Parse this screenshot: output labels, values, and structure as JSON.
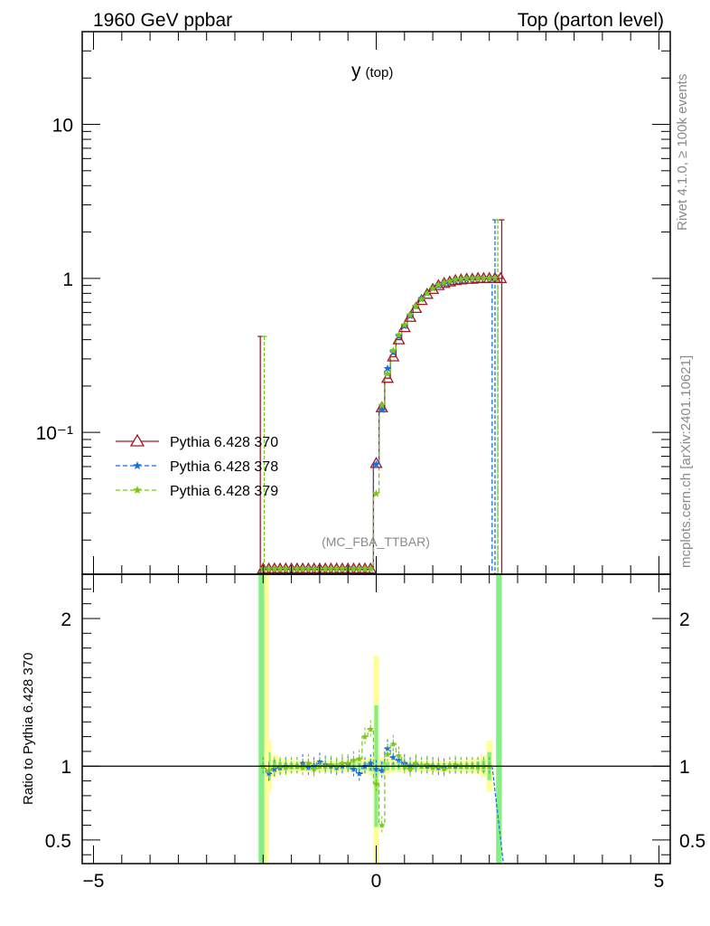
{
  "header": {
    "left": "1960 GeV ppbar",
    "right": "Top (parton level)"
  },
  "side_text": {
    "rivet": "Rivet 4.1.0, ≥ 100k events",
    "mcplots": "mcplots.cern.ch [arXiv:2401.10621]"
  },
  "plot_title": {
    "main": "y",
    "sub": "(top)"
  },
  "analysis_label": "(MC_FBA_TTBAR)",
  "ratio_ylabel": "Ratio to Pythia 6.428 370",
  "colors": {
    "s370": "#9a1c2a",
    "s378": "#1a6fe0",
    "s379": "#7cc51a",
    "band_green": "#86ee86",
    "band_yellow": "#ffff99"
  },
  "chart_data": [
    {
      "type": "line",
      "title": "y (top)",
      "xlim": [
        -5.2,
        5.2
      ],
      "ylim": [
        0.012,
        40
      ],
      "yscale": "log",
      "yticks": [
        0.1,
        1,
        10
      ],
      "ytick_labels": [
        "10⁻¹",
        "1",
        "10"
      ],
      "legend_position": "middle-left",
      "x": [
        -2.0,
        -1.9,
        -1.8,
        -1.7,
        -1.6,
        -1.5,
        -1.4,
        -1.3,
        -1.2,
        -1.1,
        -1.0,
        -0.9,
        -0.8,
        -0.7,
        -0.6,
        -0.5,
        -0.4,
        -0.3,
        -0.2,
        -0.1,
        0.0,
        0.1,
        0.2,
        0.3,
        0.4,
        0.5,
        0.6,
        0.7,
        0.8,
        0.9,
        1.0,
        1.1,
        1.2,
        1.3,
        1.4,
        1.5,
        1.6,
        1.7,
        1.8,
        1.9,
        2.0,
        2.1,
        2.2
      ],
      "series": [
        {
          "name": "Pythia 6.428 370",
          "marker": "triangle-open",
          "style": "solid",
          "values": [
            0.013,
            0.013,
            0.013,
            0.013,
            0.013,
            0.013,
            0.013,
            0.013,
            0.013,
            0.013,
            0.013,
            0.013,
            0.013,
            0.013,
            0.013,
            0.013,
            0.013,
            0.013,
            0.013,
            0.013,
            0.063,
            0.145,
            0.225,
            0.31,
            0.4,
            0.48,
            0.56,
            0.64,
            0.72,
            0.79,
            0.85,
            0.9,
            0.93,
            0.95,
            0.97,
            0.98,
            0.99,
            0.99,
            1.0,
            1.0,
            1.0,
            1.0,
            1.0
          ]
        },
        {
          "name": "Pythia 6.428 378",
          "marker": "star",
          "style": "dashed",
          "values": [
            0.013,
            0.013,
            0.013,
            0.013,
            0.013,
            0.013,
            0.013,
            0.013,
            0.013,
            0.013,
            0.013,
            0.013,
            0.013,
            0.013,
            0.013,
            0.013,
            0.013,
            0.013,
            0.013,
            0.013,
            0.062,
            0.14,
            0.26,
            0.33,
            0.42,
            0.49,
            0.57,
            0.66,
            0.74,
            0.8,
            0.86,
            0.9,
            0.93,
            0.95,
            0.97,
            0.98,
            0.99,
            1.0,
            1.0,
            1.0,
            1.0,
            0.01,
            0.01
          ]
        },
        {
          "name": "Pythia 6.428 379",
          "marker": "star",
          "style": "dashed",
          "values": [
            0.013,
            0.013,
            0.013,
            0.013,
            0.013,
            0.013,
            0.013,
            0.013,
            0.013,
            0.013,
            0.013,
            0.013,
            0.013,
            0.013,
            0.013,
            0.013,
            0.013,
            0.013,
            0.013,
            0.013,
            0.04,
            0.15,
            0.24,
            0.34,
            0.43,
            0.5,
            0.58,
            0.66,
            0.73,
            0.8,
            0.86,
            0.91,
            0.94,
            0.96,
            0.98,
            0.99,
            1.0,
            1.0,
            1.0,
            1.0,
            1.0,
            1.0,
            0.01
          ]
        }
      ]
    },
    {
      "type": "line",
      "ylabel": "Ratio to Pythia 6.428 370",
      "xlim": [
        -5.2,
        5.2
      ],
      "ylim": [
        0.34,
        2.3
      ],
      "yticks": [
        0.5,
        1,
        2
      ],
      "ytick_labels": [
        "0.5",
        "1",
        "2"
      ],
      "xticks": [
        -5,
        0,
        5
      ],
      "xtick_labels": [
        "−5",
        "0",
        "5"
      ],
      "reference_line": 1,
      "x": [
        -2.0,
        -1.9,
        -1.8,
        -1.7,
        -1.6,
        -1.5,
        -1.4,
        -1.3,
        -1.2,
        -1.1,
        -1.0,
        -0.9,
        -0.8,
        -0.7,
        -0.6,
        -0.5,
        -0.4,
        -0.3,
        -0.2,
        -0.1,
        0.0,
        0.1,
        0.2,
        0.3,
        0.4,
        0.5,
        0.6,
        0.7,
        0.8,
        0.9,
        1.0,
        1.1,
        1.2,
        1.3,
        1.4,
        1.5,
        1.6,
        1.7,
        1.8,
        1.9,
        2.0
      ],
      "series": [
        {
          "name": "Pythia 6.428 378",
          "values": [
            1.0,
            0.95,
            0.98,
            0.99,
            1.0,
            1.0,
            1.0,
            1.02,
            0.99,
            1.0,
            1.03,
            1.01,
            1.0,
            0.99,
            1.0,
            1.01,
            0.98,
            0.95,
            1.0,
            1.02,
            0.98,
            0.97,
            1.12,
            1.06,
            1.04,
            1.02,
            1.0,
            1.01,
            1.0,
            1.0,
            1.0,
            0.99,
            0.99,
            1.0,
            1.0,
            1.0,
            1.0,
            1.0,
            1.0,
            1.0,
            1.0
          ]
        },
        {
          "name": "Pythia 6.428 379",
          "values": [
            1.0,
            0.97,
            1.0,
            1.0,
            0.99,
            1.0,
            1.0,
            0.99,
            1.02,
            0.98,
            1.0,
            1.0,
            1.01,
            1.0,
            1.02,
            1.02,
            1.04,
            1.05,
            1.2,
            1.25,
            0.88,
            0.6,
            1.08,
            1.15,
            1.07,
            1.0,
            0.98,
            1.02,
            1.0,
            1.01,
            0.99,
            1.0,
            0.98,
            1.0,
            1.01,
            1.0,
            1.0,
            1.0,
            1.0,
            1.0,
            1.0
          ]
        }
      ]
    }
  ]
}
